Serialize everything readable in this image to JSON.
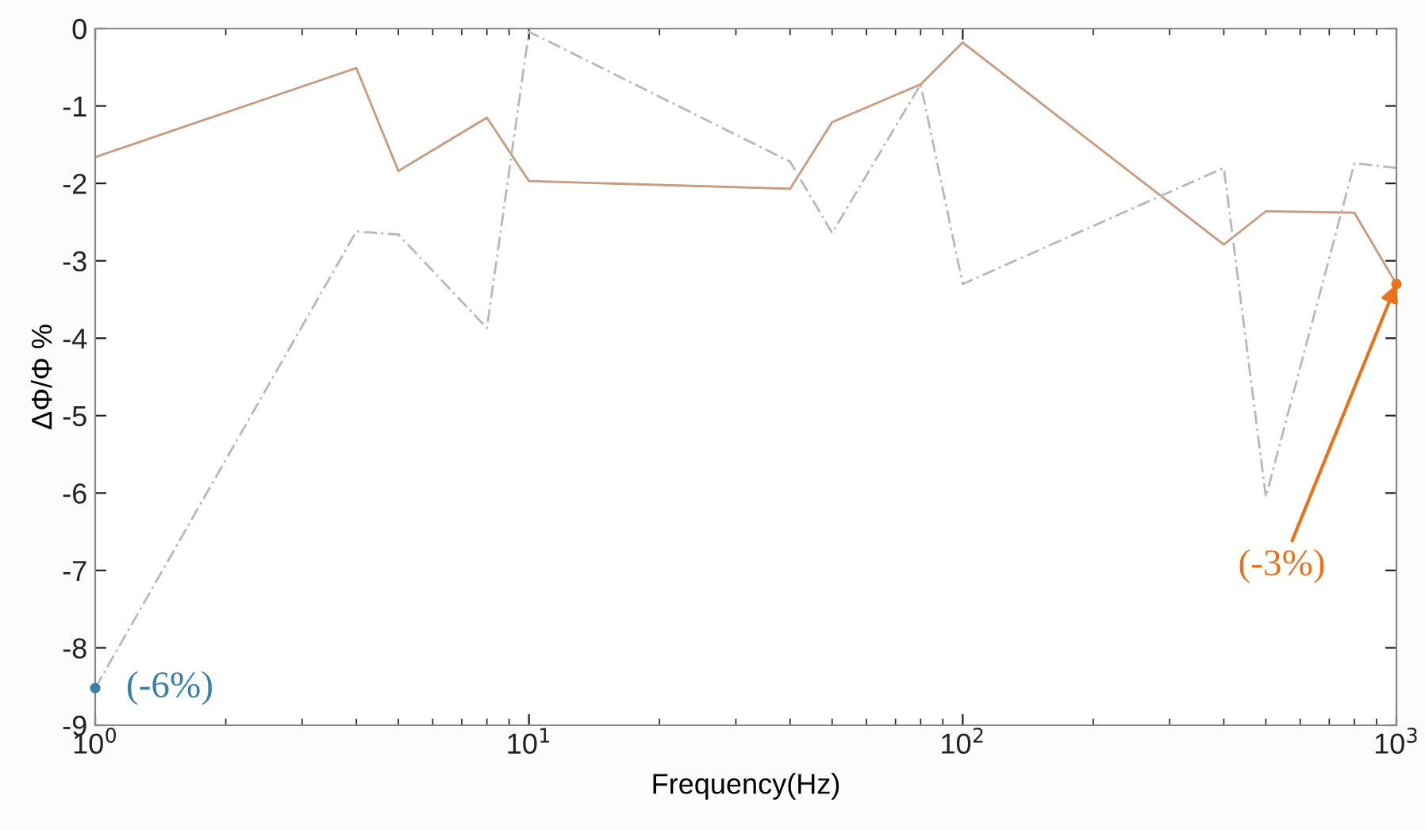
{
  "chart_data": {
    "type": "line",
    "xlabel": "Frequency(Hz)",
    "ylabel": "ΔΦ/Φ %",
    "log": "x",
    "xlim": [
      1,
      1000
    ],
    "ylim": [
      -9,
      0
    ],
    "xticks": [
      {
        "value": 1,
        "label": "10$^{0}$"
      },
      {
        "value": 10,
        "label": "10$^{1}$"
      },
      {
        "value": 100,
        "label": "10$^{2}$"
      },
      {
        "value": 1000,
        "label": "10$^{3}$"
      }
    ],
    "yticks": [
      0,
      -1,
      -2,
      -3,
      -4,
      -5,
      -6,
      -7,
      -8,
      -9
    ],
    "grid": false,
    "legend": false,
    "series": [
      {
        "color": "#c89a80",
        "line_style": "solid",
        "x": [
          1,
          4,
          5,
          8,
          10,
          40,
          50,
          80,
          100,
          400,
          500,
          800,
          1000
        ],
        "values": [
          -1.66,
          -0.51,
          -1.84,
          -1.15,
          -1.97,
          -2.07,
          -1.21,
          -0.72,
          -0.18,
          -2.79,
          -2.36,
          -2.38,
          -3.3
        ]
      },
      {
        "color": "#b8b8b8",
        "line_style": "dashed",
        "x": [
          1,
          4,
          5,
          8,
          10,
          40,
          50,
          80,
          100,
          400,
          500,
          800,
          1000
        ],
        "values": [
          -8.52,
          -2.62,
          -2.66,
          -3.87,
          -0.04,
          -1.72,
          -2.64,
          -0.72,
          -3.3,
          -1.8,
          -6.05,
          -1.74,
          -1.8
        ]
      },
      {
        "type": "scatter",
        "color": "#3a80a6",
        "x": [
          1
        ],
        "values": [
          -8.52
        ]
      },
      {
        "type": "scatter",
        "color": "#e8731e",
        "x": [
          1000
        ],
        "values": [
          -3.3
        ]
      }
    ],
    "annotations": [
      {
        "text": "(-6%)",
        "x": 1,
        "y": -8.52
      },
      {
        "text": "(-3%)",
        "x": 1000,
        "y": -3.3
      }
    ]
  }
}
